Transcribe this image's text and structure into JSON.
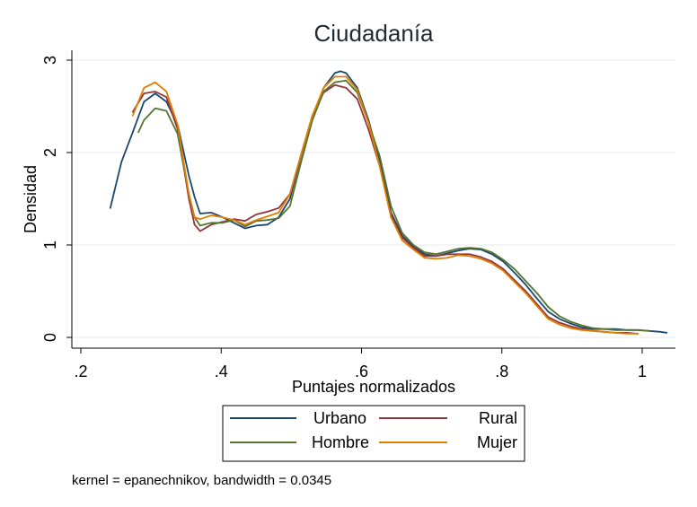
{
  "chart_data": {
    "type": "line",
    "title": "Ciudadanía",
    "xlabel": "Puntajes normalizados",
    "ylabel": "Densidad",
    "xlim": [
      0.2,
      1.0
    ],
    "ylim": [
      0,
      3
    ],
    "xticks": [
      ".2",
      ".4",
      ".6",
      ".8",
      "1"
    ],
    "xtick_values": [
      0.2,
      0.4,
      0.6,
      0.8,
      1.0
    ],
    "yticks": [
      "0",
      "1",
      "2",
      "3"
    ],
    "ytick_values": [
      0,
      1,
      2,
      3
    ],
    "grid": "horizontal",
    "legend_position": "bottom",
    "note": "kernel = epanechnikov, bandwidth = 0.0345",
    "series": [
      {
        "name": "Urbano",
        "color": "#1a476f",
        "x": [
          0.242,
          0.258,
          0.274,
          0.29,
          0.306,
          0.322,
          0.338,
          0.354,
          0.362,
          0.37,
          0.386,
          0.402,
          0.418,
          0.434,
          0.45,
          0.466,
          0.482,
          0.498,
          0.514,
          0.53,
          0.546,
          0.562,
          0.57,
          0.578,
          0.594,
          0.61,
          0.626,
          0.642,
          0.658,
          0.674,
          0.69,
          0.706,
          0.722,
          0.738,
          0.754,
          0.77,
          0.786,
          0.802,
          0.818,
          0.834,
          0.85,
          0.866,
          0.882,
          0.898,
          0.914,
          0.93,
          0.946,
          0.962,
          0.978,
          0.994,
          1.01,
          1.026,
          1.035
        ],
        "y": [
          1.4,
          1.9,
          2.22,
          2.55,
          2.64,
          2.55,
          2.3,
          1.75,
          1.52,
          1.34,
          1.35,
          1.3,
          1.24,
          1.18,
          1.21,
          1.22,
          1.3,
          1.5,
          1.97,
          2.38,
          2.7,
          2.86,
          2.88,
          2.86,
          2.7,
          2.35,
          1.9,
          1.35,
          1.1,
          0.98,
          0.9,
          0.88,
          0.91,
          0.94,
          0.96,
          0.95,
          0.9,
          0.82,
          0.7,
          0.57,
          0.42,
          0.28,
          0.2,
          0.15,
          0.11,
          0.09,
          0.09,
          0.09,
          0.08,
          0.08,
          0.07,
          0.06,
          0.05
        ]
      },
      {
        "name": "Rural",
        "color": "#90353b",
        "x": [
          0.274,
          0.29,
          0.306,
          0.322,
          0.338,
          0.354,
          0.362,
          0.37,
          0.386,
          0.402,
          0.418,
          0.434,
          0.45,
          0.466,
          0.482,
          0.498,
          0.514,
          0.53,
          0.546,
          0.562,
          0.578,
          0.594,
          0.61,
          0.626,
          0.642,
          0.658,
          0.674,
          0.69,
          0.706,
          0.722,
          0.738,
          0.754,
          0.77,
          0.786,
          0.802,
          0.818,
          0.834,
          0.85,
          0.866,
          0.882,
          0.898,
          0.914,
          0.93,
          0.946,
          0.962,
          0.978,
          0.994
        ],
        "y": [
          2.44,
          2.64,
          2.66,
          2.6,
          2.25,
          1.5,
          1.22,
          1.15,
          1.22,
          1.25,
          1.28,
          1.26,
          1.33,
          1.36,
          1.4,
          1.55,
          1.98,
          2.4,
          2.65,
          2.73,
          2.7,
          2.58,
          2.25,
          1.85,
          1.32,
          1.08,
          0.97,
          0.88,
          0.88,
          0.9,
          0.9,
          0.9,
          0.87,
          0.82,
          0.74,
          0.62,
          0.5,
          0.36,
          0.22,
          0.16,
          0.12,
          0.09,
          0.07,
          0.06,
          0.05,
          0.05,
          0.04
        ]
      },
      {
        "name": "Hombre",
        "color": "#55752f",
        "x": [
          0.282,
          0.29,
          0.306,
          0.322,
          0.338,
          0.354,
          0.362,
          0.37,
          0.386,
          0.402,
          0.418,
          0.434,
          0.45,
          0.466,
          0.482,
          0.498,
          0.514,
          0.53,
          0.546,
          0.562,
          0.578,
          0.594,
          0.61,
          0.626,
          0.642,
          0.658,
          0.674,
          0.69,
          0.706,
          0.722,
          0.738,
          0.754,
          0.77,
          0.786,
          0.802,
          0.818,
          0.834,
          0.85,
          0.866,
          0.882,
          0.898,
          0.914,
          0.93,
          0.946,
          0.962,
          0.978,
          0.994,
          1.01
        ],
        "y": [
          2.22,
          2.35,
          2.48,
          2.45,
          2.2,
          1.55,
          1.3,
          1.21,
          1.24,
          1.24,
          1.27,
          1.2,
          1.26,
          1.27,
          1.29,
          1.42,
          1.9,
          2.35,
          2.66,
          2.76,
          2.78,
          2.65,
          2.32,
          1.96,
          1.42,
          1.13,
          1.0,
          0.92,
          0.9,
          0.93,
          0.96,
          0.97,
          0.96,
          0.92,
          0.84,
          0.74,
          0.61,
          0.48,
          0.33,
          0.23,
          0.17,
          0.13,
          0.1,
          0.09,
          0.08,
          0.08,
          0.08,
          0.07
        ]
      },
      {
        "name": "Mujer",
        "color": "#e37e00",
        "x": [
          0.274,
          0.29,
          0.306,
          0.322,
          0.338,
          0.354,
          0.362,
          0.37,
          0.386,
          0.402,
          0.418,
          0.434,
          0.45,
          0.466,
          0.482,
          0.498,
          0.514,
          0.53,
          0.546,
          0.562,
          0.578,
          0.594,
          0.61,
          0.626,
          0.642,
          0.658,
          0.674,
          0.69,
          0.706,
          0.722,
          0.738,
          0.754,
          0.77,
          0.786,
          0.802,
          0.818,
          0.834,
          0.85,
          0.866,
          0.882,
          0.898,
          0.914,
          0.93,
          0.946,
          0.962,
          0.978,
          0.994
        ],
        "y": [
          2.4,
          2.7,
          2.76,
          2.66,
          2.3,
          1.55,
          1.3,
          1.28,
          1.32,
          1.3,
          1.27,
          1.22,
          1.27,
          1.31,
          1.35,
          1.55,
          1.98,
          2.4,
          2.7,
          2.82,
          2.82,
          2.68,
          2.32,
          1.85,
          1.3,
          1.05,
          0.95,
          0.86,
          0.85,
          0.86,
          0.89,
          0.88,
          0.85,
          0.8,
          0.72,
          0.6,
          0.48,
          0.34,
          0.2,
          0.14,
          0.1,
          0.08,
          0.07,
          0.06,
          0.05,
          0.04,
          0.04
        ]
      }
    ]
  }
}
